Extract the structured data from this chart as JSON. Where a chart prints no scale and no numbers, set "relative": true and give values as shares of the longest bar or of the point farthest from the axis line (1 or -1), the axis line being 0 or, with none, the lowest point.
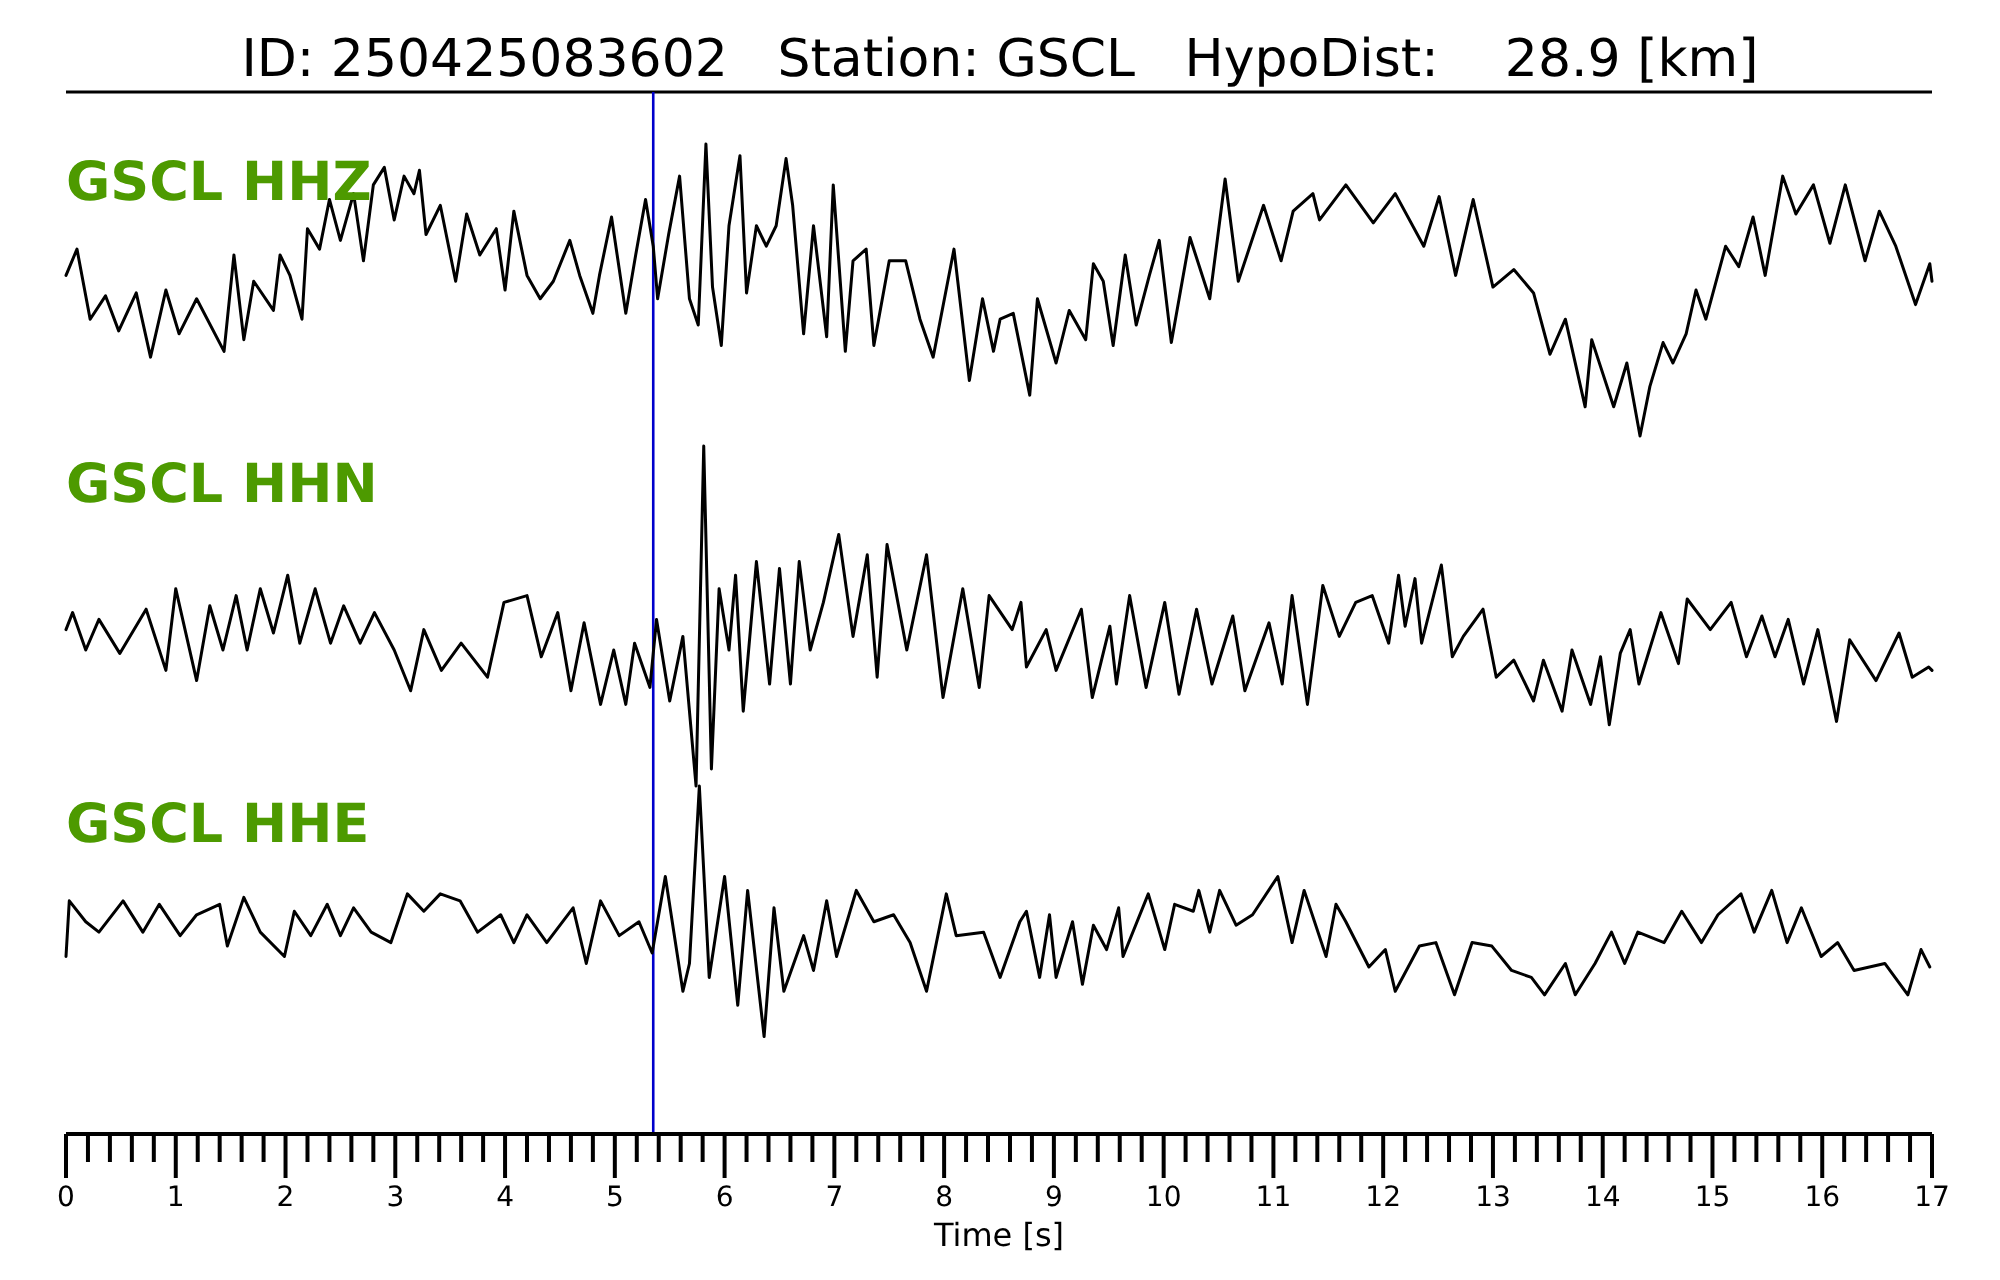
{
  "chart_data": [
    {
      "type": "line",
      "relative": true,
      "title": "ID: 250425083602   Station: GSCL   HypoDist:    28.9 [km]",
      "xlim": [
        0,
        17
      ],
      "tick_labels": false,
      "ref_lines": [
        {
          "axis": "x",
          "value": 5.35,
          "color": "#0000cc"
        }
      ],
      "series": [
        {
          "name": "GSCL HHZ",
          "color": "#000000",
          "x": [
            0,
            0.1,
            0.22,
            0.36,
            0.48,
            0.64,
            0.77,
            0.91,
            1.03,
            1.19,
            1.44,
            1.53,
            1.62,
            1.71,
            1.89,
            1.95,
            2.04,
            2.15,
            2.2,
            2.31,
            2.4,
            2.5,
            2.62,
            2.71,
            2.8,
            2.9,
            2.99,
            3.08,
            3.17,
            3.22,
            3.28,
            3.41,
            3.55,
            3.65,
            3.77,
            3.92,
            4.0,
            4.08,
            4.2,
            4.32,
            4.44,
            4.59,
            4.68,
            4.8,
            4.86,
            4.97,
            5.1,
            5.19,
            5.28,
            5.35,
            5.39,
            5.49,
            5.59,
            5.68,
            5.76,
            5.83,
            5.89,
            5.97,
            6.04,
            6.14,
            6.2,
            6.29,
            6.38,
            6.47,
            6.56,
            6.62,
            6.72,
            6.81,
            6.93,
            6.99,
            7.1,
            7.17,
            7.29,
            7.36,
            7.5,
            7.65,
            7.78,
            7.9,
            8.09,
            8.23,
            8.35,
            8.45,
            8.51,
            8.63,
            8.78,
            8.85,
            9.02,
            9.14,
            9.29,
            9.36,
            9.45,
            9.54,
            9.65,
            9.75,
            9.87,
            9.96,
            10.07,
            10.24,
            10.42,
            10.56,
            10.68,
            10.91,
            11.07,
            11.18,
            11.36,
            11.42,
            11.66,
            11.91,
            12.11,
            12.37,
            12.51,
            12.66,
            12.82,
            13.0,
            13.19,
            13.37,
            13.52,
            13.66,
            13.84,
            13.9,
            14.1,
            14.22,
            14.34,
            14.43,
            14.55,
            14.64,
            14.76,
            14.85,
            14.94,
            15.12,
            15.24,
            15.37,
            15.48,
            15.64,
            15.76,
            15.92,
            16.07,
            16.21,
            16.39,
            16.52,
            16.67,
            16.85,
            16.98,
            17
          ],
          "values": [
            0.55,
            0.64,
            0.4,
            0.48,
            0.36,
            0.49,
            0.27,
            0.5,
            0.35,
            0.47,
            0.29,
            0.62,
            0.33,
            0.53,
            0.43,
            0.62,
            0.55,
            0.4,
            0.71,
            0.64,
            0.81,
            0.67,
            0.83,
            0.6,
            0.86,
            0.92,
            0.74,
            0.89,
            0.83,
            0.91,
            0.69,
            0.79,
            0.53,
            0.76,
            0.62,
            0.71,
            0.5,
            0.77,
            0.55,
            0.47,
            0.53,
            0.67,
            0.55,
            0.42,
            0.55,
            0.75,
            0.42,
            0.62,
            0.81,
            0.65,
            0.47,
            0.69,
            0.89,
            0.47,
            0.38,
            1.0,
            0.51,
            0.31,
            0.72,
            0.96,
            0.49,
            0.72,
            0.65,
            0.72,
            0.95,
            0.79,
            0.35,
            0.72,
            0.34,
            0.86,
            0.29,
            0.6,
            0.64,
            0.31,
            0.6,
            0.6,
            0.4,
            0.27,
            0.64,
            0.19,
            0.47,
            0.29,
            0.4,
            0.42,
            0.14,
            0.47,
            0.25,
            0.43,
            0.33,
            0.59,
            0.53,
            0.31,
            0.62,
            0.38,
            0.55,
            0.67,
            0.32,
            0.68,
            0.47,
            0.88,
            0.53,
            0.79,
            0.6,
            0.77,
            0.83,
            0.74,
            0.86,
            0.73,
            0.83,
            0.65,
            0.82,
            0.55,
            0.81,
            0.51,
            0.57,
            0.49,
            0.28,
            0.4,
            0.1,
            0.33,
            0.1,
            0.25,
            0,
            0.17,
            0.32,
            0.25,
            0.35,
            0.5,
            0.4,
            0.65,
            0.58,
            0.75,
            0.55,
            0.89,
            0.76,
            0.86,
            0.66,
            0.86,
            0.6,
            0.77,
            0.65,
            0.45,
            0.59,
            0.53
          ]
        }
      ]
    },
    {
      "type": "line",
      "relative": true,
      "xlim": [
        0,
        17
      ],
      "tick_labels": false,
      "ref_lines": [
        {
          "axis": "x",
          "value": 5.35,
          "color": "#0000cc"
        }
      ],
      "series": [
        {
          "name": "GSCL HHN",
          "color": "#000000",
          "x": [
            0,
            0.06,
            0.18,
            0.3,
            0.49,
            0.73,
            0.91,
            1.0,
            1.19,
            1.31,
            1.43,
            1.55,
            1.65,
            1.77,
            1.89,
            2.02,
            2.13,
            2.27,
            2.41,
            2.53,
            2.68,
            2.81,
            2.99,
            3.14,
            3.26,
            3.42,
            3.6,
            3.84,
            3.99,
            4.2,
            4.33,
            4.48,
            4.6,
            4.72,
            4.87,
            4.99,
            5.1,
            5.18,
            5.32,
            5.38,
            5.5,
            5.62,
            5.74,
            5.81,
            5.88,
            5.95,
            6.04,
            6.1,
            6.17,
            6.29,
            6.41,
            6.5,
            6.6,
            6.68,
            6.78,
            6.9,
            7.04,
            7.17,
            7.3,
            7.39,
            7.48,
            7.66,
            7.84,
            7.99,
            8.17,
            8.32,
            8.41,
            8.62,
            8.7,
            8.75,
            8.93,
            9.02,
            9.25,
            9.35,
            9.51,
            9.57,
            9.69,
            9.84,
            10.01,
            10.14,
            10.3,
            10.44,
            10.63,
            10.74,
            10.96,
            11.08,
            11.17,
            11.31,
            11.45,
            11.6,
            11.75,
            11.9,
            12.05,
            12.14,
            12.2,
            12.29,
            12.35,
            12.53,
            12.63,
            12.73,
            12.91,
            13.03,
            13.19,
            13.37,
            13.46,
            13.63,
            13.72,
            13.89,
            13.98,
            14.06,
            14.16,
            14.25,
            14.33,
            14.53,
            14.69,
            14.77,
            14.98,
            15.17,
            15.31,
            15.45,
            15.57,
            15.69,
            15.83,
            15.96,
            16.13,
            16.25,
            16.49,
            16.7,
            16.82,
            16.97,
            17
          ],
          "values": [
            0.46,
            0.51,
            0.4,
            0.49,
            0.39,
            0.52,
            0.34,
            0.58,
            0.31,
            0.53,
            0.4,
            0.56,
            0.4,
            0.58,
            0.45,
            0.62,
            0.42,
            0.58,
            0.42,
            0.53,
            0.42,
            0.51,
            0.4,
            0.28,
            0.46,
            0.34,
            0.42,
            0.32,
            0.54,
            0.56,
            0.38,
            0.51,
            0.28,
            0.48,
            0.24,
            0.4,
            0.24,
            0.42,
            0.29,
            0.49,
            0.25,
            0.44,
            0,
            1,
            0.05,
            0.58,
            0.4,
            0.62,
            0.22,
            0.66,
            0.3,
            0.64,
            0.3,
            0.66,
            0.4,
            0.54,
            0.74,
            0.44,
            0.68,
            0.32,
            0.71,
            0.4,
            0.68,
            0.26,
            0.58,
            0.29,
            0.56,
            0.46,
            0.54,
            0.35,
            0.46,
            0.34,
            0.52,
            0.26,
            0.47,
            0.3,
            0.56,
            0.29,
            0.54,
            0.27,
            0.52,
            0.3,
            0.5,
            0.28,
            0.48,
            0.3,
            0.56,
            0.24,
            0.59,
            0.44,
            0.54,
            0.56,
            0.42,
            0.62,
            0.47,
            0.61,
            0.42,
            0.65,
            0.38,
            0.44,
            0.52,
            0.32,
            0.37,
            0.25,
            0.37,
            0.22,
            0.4,
            0.24,
            0.38,
            0.18,
            0.39,
            0.46,
            0.3,
            0.51,
            0.36,
            0.55,
            0.46,
            0.54,
            0.38,
            0.5,
            0.38,
            0.49,
            0.3,
            0.46,
            0.19,
            0.43,
            0.31,
            0.45,
            0.32,
            0.35,
            0.34
          ]
        }
      ]
    },
    {
      "type": "line",
      "relative": true,
      "xlim": [
        0,
        17
      ],
      "tick_labels": "x",
      "xlabel": "Time [s]",
      "ref_lines": [
        {
          "axis": "x",
          "value": 5.35,
          "color": "#0000cc"
        }
      ],
      "xticks": [
        0,
        {
          "value": 0.2,
          "label": null
        },
        {
          "value": 0.4,
          "label": null
        },
        {
          "value": 0.6,
          "label": null
        },
        {
          "value": 0.8,
          "label": null
        },
        1,
        {
          "value": 1.2,
          "label": null
        },
        {
          "value": 1.4,
          "label": null
        },
        {
          "value": 1.6,
          "label": null
        },
        {
          "value": 1.8,
          "label": null
        },
        2,
        {
          "value": 2.2,
          "label": null
        },
        {
          "value": 2.4,
          "label": null
        },
        {
          "value": 2.6,
          "label": null
        },
        {
          "value": 2.8,
          "label": null
        },
        3,
        {
          "value": 3.2,
          "label": null
        },
        {
          "value": 3.4,
          "label": null
        },
        {
          "value": 3.6,
          "label": null
        },
        {
          "value": 3.8,
          "label": null
        },
        4,
        {
          "value": 4.2,
          "label": null
        },
        {
          "value": 4.4,
          "label": null
        },
        {
          "value": 4.6,
          "label": null
        },
        {
          "value": 4.8,
          "label": null
        },
        5,
        {
          "value": 5.2,
          "label": null
        },
        {
          "value": 5.4,
          "label": null
        },
        {
          "value": 5.6,
          "label": null
        },
        {
          "value": 5.8,
          "label": null
        },
        6,
        {
          "value": 6.2,
          "label": null
        },
        {
          "value": 6.4,
          "label": null
        },
        {
          "value": 6.6,
          "label": null
        },
        {
          "value": 6.8,
          "label": null
        },
        7,
        {
          "value": 7.2,
          "label": null
        },
        {
          "value": 7.4,
          "label": null
        },
        {
          "value": 7.6,
          "label": null
        },
        {
          "value": 7.8,
          "label": null
        },
        8,
        {
          "value": 8.2,
          "label": null
        },
        {
          "value": 8.4,
          "label": null
        },
        {
          "value": 8.6,
          "label": null
        },
        {
          "value": 8.8,
          "label": null
        },
        9,
        {
          "value": 9.2,
          "label": null
        },
        {
          "value": 9.4,
          "label": null
        },
        {
          "value": 9.6,
          "label": null
        },
        {
          "value": 9.8,
          "label": null
        },
        10,
        {
          "value": 10.2,
          "label": null
        },
        {
          "value": 10.4,
          "label": null
        },
        {
          "value": 10.6,
          "label": null
        },
        {
          "value": 10.8,
          "label": null
        },
        11,
        {
          "value": 11.2,
          "label": null
        },
        {
          "value": 11.4,
          "label": null
        },
        {
          "value": 11.6,
          "label": null
        },
        {
          "value": 11.8,
          "label": null
        },
        12,
        {
          "value": 12.2,
          "label": null
        },
        {
          "value": 12.4,
          "label": null
        },
        {
          "value": 12.6,
          "label": null
        },
        {
          "value": 12.8,
          "label": null
        },
        13,
        {
          "value": 13.2,
          "label": null
        },
        {
          "value": 13.4,
          "label": null
        },
        {
          "value": 13.6,
          "label": null
        },
        {
          "value": 13.8,
          "label": null
        },
        14,
        {
          "value": 14.2,
          "label": null
        },
        {
          "value": 14.4,
          "label": null
        },
        {
          "value": 14.6,
          "label": null
        },
        {
          "value": 14.8,
          "label": null
        },
        15,
        {
          "value": 15.2,
          "label": null
        },
        {
          "value": 15.4,
          "label": null
        },
        {
          "value": 15.6,
          "label": null
        },
        {
          "value": 15.8,
          "label": null
        },
        16,
        {
          "value": 16.2,
          "label": null
        },
        {
          "value": 16.4,
          "label": null
        },
        {
          "value": 16.6,
          "label": null
        },
        {
          "value": 16.8,
          "label": null
        },
        17
      ],
      "series": [
        {
          "name": "GSCL HHE",
          "color": "#000000",
          "x": [
            0,
            0.03,
            0.18,
            0.3,
            0.52,
            0.7,
            0.85,
            1.04,
            1.19,
            1.4,
            1.47,
            1.62,
            1.77,
            1.99,
            2.08,
            2.23,
            2.38,
            2.5,
            2.62,
            2.78,
            2.96,
            3.11,
            3.26,
            3.41,
            3.59,
            3.75,
            3.96,
            4.08,
            4.2,
            4.38,
            4.62,
            4.74,
            4.87,
            5.04,
            5.22,
            5.34,
            5.46,
            5.62,
            5.68,
            5.77,
            5.86,
            6.0,
            6.12,
            6.21,
            6.36,
            6.45,
            6.54,
            6.72,
            6.81,
            6.93,
            7.02,
            7.2,
            7.36,
            7.54,
            7.69,
            7.84,
            8.02,
            8.11,
            8.36,
            8.51,
            8.69,
            8.75,
            8.87,
            8.96,
            9.02,
            9.17,
            9.26,
            9.36,
            9.48,
            9.59,
            9.63,
            9.86,
            10.01,
            10.1,
            10.27,
            10.32,
            10.42,
            10.51,
            10.66,
            10.81,
            11.04,
            11.17,
            11.28,
            11.48,
            11.57,
            11.66,
            11.87,
            12.02,
            12.11,
            12.33,
            12.48,
            12.65,
            12.81,
            12.99,
            13.17,
            13.35,
            13.47,
            13.66,
            13.75,
            13.93,
            14.08,
            14.2,
            14.32,
            14.56,
            14.72,
            14.9,
            15.05,
            15.26,
            15.38,
            15.54,
            15.68,
            15.81,
            15.99,
            16.14,
            16.29,
            16.57,
            16.78,
            16.9,
            16.98
          ],
          "values": [
            0.51,
            0.67,
            0.61,
            0.58,
            0.67,
            0.58,
            0.66,
            0.57,
            0.63,
            0.66,
            0.54,
            0.68,
            0.58,
            0.51,
            0.64,
            0.57,
            0.66,
            0.57,
            0.65,
            0.58,
            0.55,
            0.69,
            0.64,
            0.69,
            0.67,
            0.58,
            0.63,
            0.55,
            0.63,
            0.55,
            0.65,
            0.49,
            0.67,
            0.57,
            0.61,
            0.52,
            0.74,
            0.41,
            0.49,
            1,
            0.45,
            0.74,
            0.37,
            0.7,
            0.28,
            0.65,
            0.41,
            0.57,
            0.47,
            0.67,
            0.51,
            0.7,
            0.61,
            0.63,
            0.55,
            0.41,
            0.69,
            0.57,
            0.58,
            0.45,
            0.61,
            0.64,
            0.45,
            0.63,
            0.45,
            0.61,
            0.43,
            0.6,
            0.53,
            0.65,
            0.51,
            0.69,
            0.53,
            0.66,
            0.64,
            0.7,
            0.58,
            0.7,
            0.6,
            0.63,
            0.74,
            0.55,
            0.7,
            0.51,
            0.66,
            0.61,
            0.48,
            0.53,
            0.41,
            0.54,
            0.55,
            0.4,
            0.55,
            0.54,
            0.47,
            0.45,
            0.4,
            0.49,
            0.4,
            0.49,
            0.58,
            0.49,
            0.58,
            0.55,
            0.64,
            0.55,
            0.63,
            0.69,
            0.58,
            0.7,
            0.55,
            0.65,
            0.51,
            0.55,
            0.47,
            0.49,
            0.4,
            0.53,
            0.48
          ]
        }
      ]
    }
  ]
}
